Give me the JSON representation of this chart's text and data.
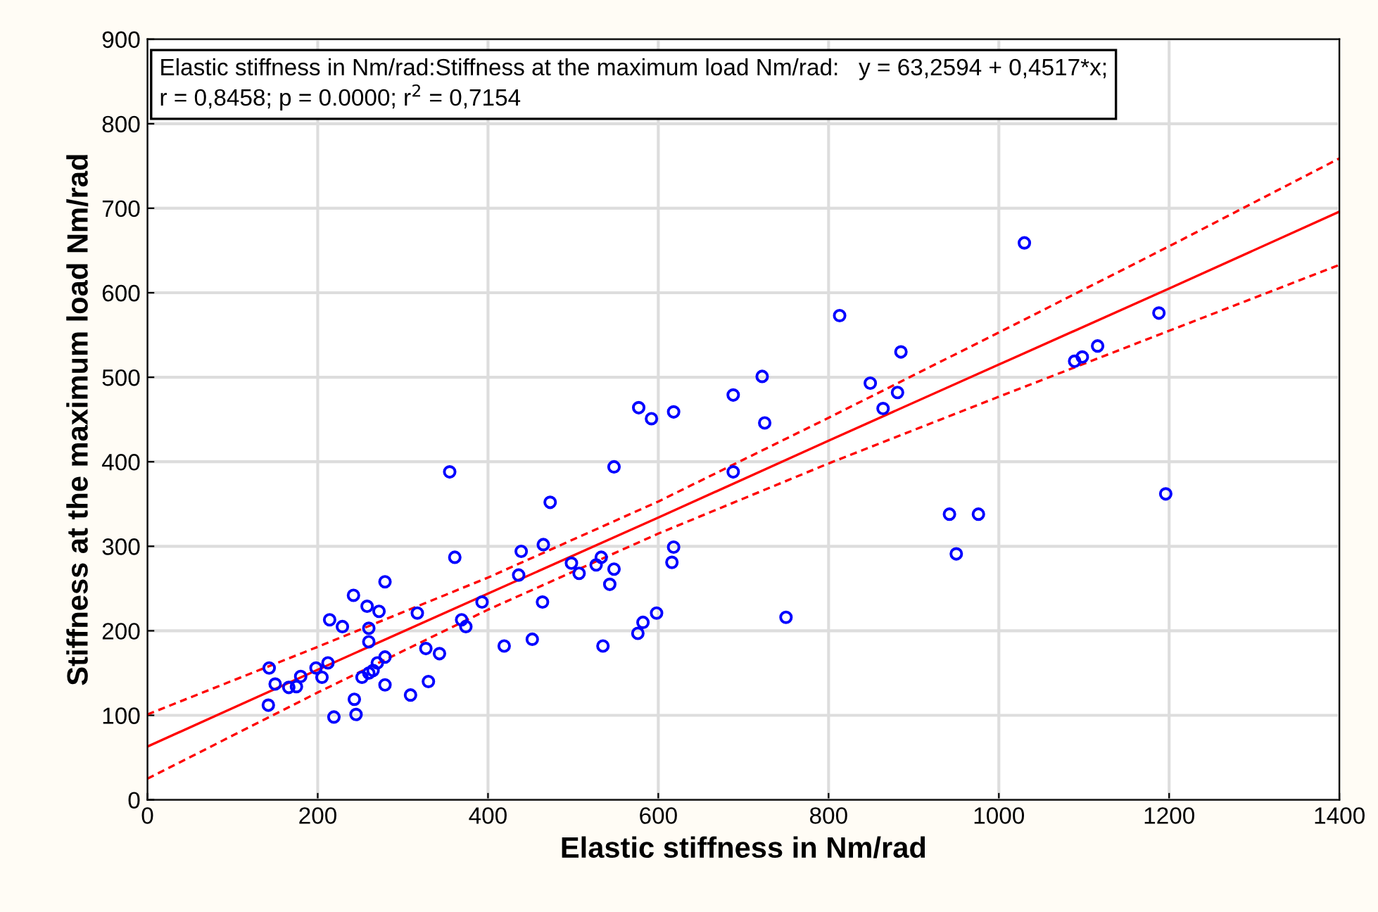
{
  "chart_data": {
    "type": "scatter",
    "xlabel": "Elastic stiffness in Nm/rad",
    "ylabel": "Stiffness at the maximum load Nm/rad",
    "annotations": [
      "Elastic stiffness in Nm/rad:Stiffness at the maximum load Nm/rad:   y = 63,2594 + 0,4517*x;\nr = 0,8458; p = 0.0000; r$^{2}$ = 0,7154"
    ],
    "series": [
      {
        "color": "#0000ff",
        "marker": "circle",
        "x": [
          143,
          150,
          142,
          166,
          175,
          180,
          198,
          205,
          212,
          219,
          243,
          245,
          214,
          229,
          242,
          258,
          260,
          260,
          272,
          279,
          252,
          260,
          265,
          270,
          279,
          279,
          309,
          330,
          317,
          327,
          343,
          355,
          361,
          393,
          369,
          374,
          419,
          452,
          436,
          439,
          465,
          464,
          473,
          498,
          507,
          527,
          533,
          548,
          543,
          548,
          535,
          577,
          592,
          618,
          618,
          616,
          598,
          582,
          576,
          688,
          722,
          725,
          688,
          750,
          849,
          864,
          881,
          1030,
          813,
          885,
          1188,
          1116,
          1098,
          1089,
          1196,
          942,
          976,
          950
        ],
        "values": [
          156,
          137,
          112,
          133,
          134,
          146,
          156,
          145,
          162,
          98,
          119,
          101,
          213,
          205,
          242,
          229,
          203,
          187,
          223,
          258,
          145,
          150,
          153,
          162,
          169,
          136,
          124,
          140,
          221,
          179,
          173,
          388,
          287,
          234,
          213,
          205,
          182,
          190,
          266,
          294,
          302,
          234,
          352,
          280,
          268,
          278,
          287,
          273,
          255,
          394,
          182,
          464,
          451,
          459,
          299,
          281,
          221,
          210,
          197,
          479,
          501,
          446,
          388,
          216,
          493,
          463,
          482,
          659,
          573,
          530,
          576,
          537,
          524,
          519,
          362,
          338,
          338,
          291
        ]
      },
      {
        "type": "line",
        "color": "#ff0000",
        "line_style": "solid",
        "x": [
          0,
          200,
          400,
          600,
          800,
          1000,
          1200,
          1400
        ],
        "values": [
          63,
          154,
          244,
          334,
          425,
          515,
          605,
          696
        ]
      },
      {
        "type": "line",
        "color": "#ff0000",
        "line_style": "dashed",
        "x": [
          0,
          200,
          400,
          600,
          800,
          1000,
          1200,
          1400
        ],
        "values": [
          25,
          127,
          225,
          315,
          398,
          477,
          555,
          633
        ]
      },
      {
        "type": "line",
        "color": "#ff0000",
        "line_style": "dashed",
        "x": [
          0,
          200,
          400,
          600,
          800,
          1000,
          1200,
          1400
        ],
        "values": [
          101,
          181,
          263,
          353,
          452,
          553,
          655,
          759
        ]
      }
    ],
    "xlim": [
      0,
      1400
    ],
    "xticks": [
      0,
      200,
      400,
      600,
      800,
      1000,
      1200,
      1400
    ],
    "ylim": [
      0,
      900
    ],
    "yticks": [
      0,
      100,
      200,
      300,
      400,
      500,
      600,
      700,
      800,
      900
    ],
    "grid": true,
    "legend": false
  }
}
